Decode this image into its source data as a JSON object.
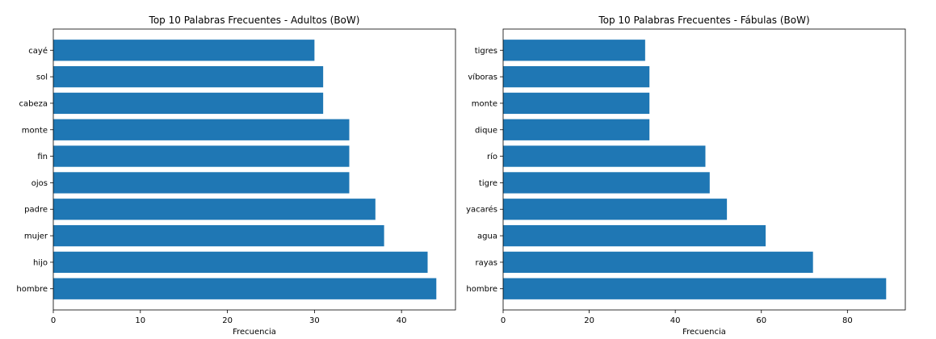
{
  "chart_data": [
    {
      "type": "bar",
      "orientation": "horizontal",
      "title": "Top 10 Palabras Frecuentes - Adultos (BoW)",
      "xlabel": "Frecuencia",
      "ylabel": "",
      "categories": [
        "cayé",
        "sol",
        "cabeza",
        "monte",
        "fin",
        "ojos",
        "padre",
        "mujer",
        "hijo",
        "hombre"
      ],
      "values": [
        30,
        31,
        31,
        34,
        34,
        34,
        37,
        38,
        43,
        44
      ],
      "xlim": [
        0,
        46.2
      ],
      "xticks": [
        0,
        10,
        20,
        30,
        40
      ],
      "color": "#1f77b4",
      "grid": false
    },
    {
      "type": "bar",
      "orientation": "horizontal",
      "title": "Top 10 Palabras Frecuentes - Fábulas (BoW)",
      "xlabel": "Frecuencia",
      "ylabel": "",
      "categories": [
        "tigres",
        "víboras",
        "monte",
        "dique",
        "río",
        "tigre",
        "yacarés",
        "agua",
        "rayas",
        "hombre"
      ],
      "values": [
        33,
        34,
        34,
        34,
        47,
        48,
        52,
        61,
        72,
        89
      ],
      "xlim": [
        0,
        93.45
      ],
      "xticks": [
        0,
        20,
        40,
        60,
        80
      ],
      "color": "#1f77b4",
      "grid": false
    }
  ]
}
